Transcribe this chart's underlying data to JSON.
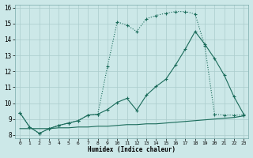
{
  "xlabel": "Humidex (Indice chaleur)",
  "bg_color": "#cce8e8",
  "grid_color": "#aacccc",
  "line_color": "#1a6b5a",
  "xlim": [
    -0.5,
    23.5
  ],
  "ylim": [
    7.8,
    16.2
  ],
  "yticks": [
    8,
    9,
    10,
    11,
    12,
    13,
    14,
    15,
    16
  ],
  "xticks": [
    0,
    1,
    2,
    3,
    4,
    5,
    6,
    7,
    8,
    9,
    10,
    11,
    12,
    13,
    14,
    15,
    16,
    17,
    18,
    19,
    20,
    21,
    22,
    23
  ],
  "line1_x": [
    0,
    1,
    2,
    3,
    4,
    5,
    6,
    7,
    8,
    9,
    10,
    11,
    12,
    13,
    14,
    15,
    16,
    17,
    18,
    19,
    20,
    21,
    22,
    23
  ],
  "line1_y": [
    9.4,
    8.5,
    8.1,
    8.4,
    8.6,
    8.75,
    8.9,
    9.25,
    9.3,
    9.6,
    10.05,
    10.3,
    9.55,
    10.5,
    11.05,
    11.5,
    12.4,
    13.4,
    14.5,
    13.7,
    12.8,
    11.75,
    10.4,
    9.3
  ],
  "line2_x": [
    0,
    1,
    2,
    3,
    4,
    5,
    6,
    7,
    8,
    9,
    10,
    11,
    12,
    13,
    14,
    15,
    16,
    17,
    18,
    19,
    20,
    21,
    22,
    23
  ],
  "line2_y": [
    9.4,
    8.5,
    8.1,
    8.4,
    8.6,
    8.75,
    8.9,
    9.25,
    9.3,
    12.3,
    15.1,
    14.9,
    14.5,
    15.3,
    15.5,
    15.65,
    15.75,
    15.75,
    15.6,
    13.6,
    9.3,
    9.25,
    9.25,
    9.25
  ],
  "line3_x": [
    0,
    1,
    2,
    3,
    4,
    5,
    6,
    7,
    8,
    9,
    10,
    11,
    12,
    13,
    14,
    15,
    16,
    17,
    18,
    19,
    20,
    21,
    22,
    23
  ],
  "line3_y": [
    8.4,
    8.4,
    8.4,
    8.4,
    8.45,
    8.45,
    8.5,
    8.5,
    8.55,
    8.55,
    8.6,
    8.65,
    8.65,
    8.7,
    8.7,
    8.75,
    8.8,
    8.85,
    8.9,
    8.95,
    9.0,
    9.05,
    9.1,
    9.2
  ]
}
